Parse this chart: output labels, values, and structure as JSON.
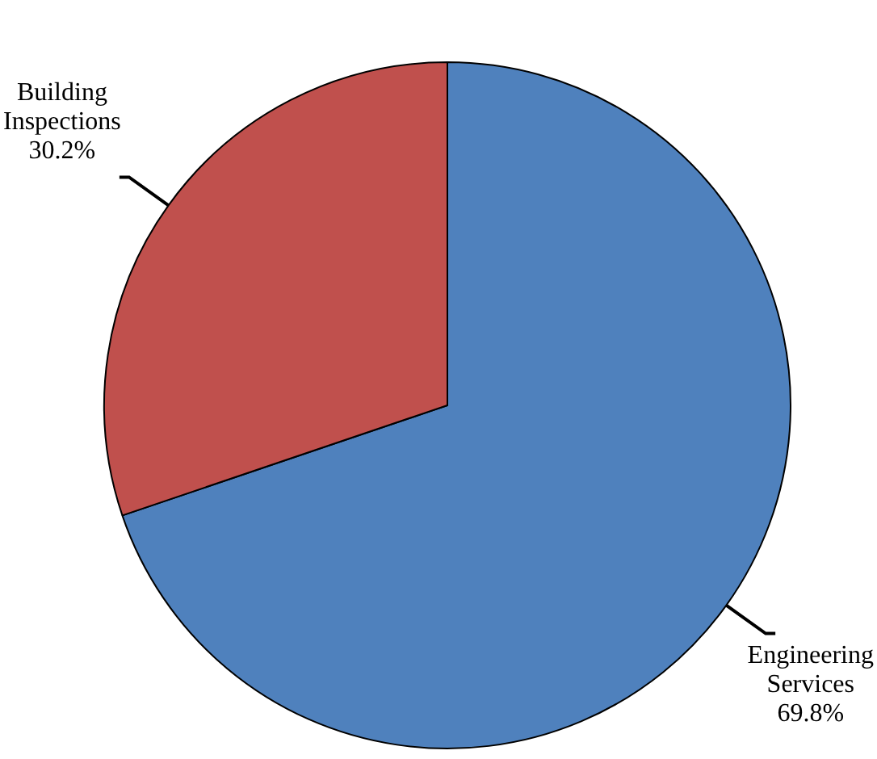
{
  "chart_data": {
    "type": "pie",
    "categories": [
      "Engineering Services",
      "Building Inspections"
    ],
    "values": [
      69.8,
      30.2
    ],
    "value_labels": [
      "69.8%",
      "30.2%"
    ],
    "colors": [
      "#4f81bd",
      "#c0504d"
    ],
    "legend": false
  }
}
